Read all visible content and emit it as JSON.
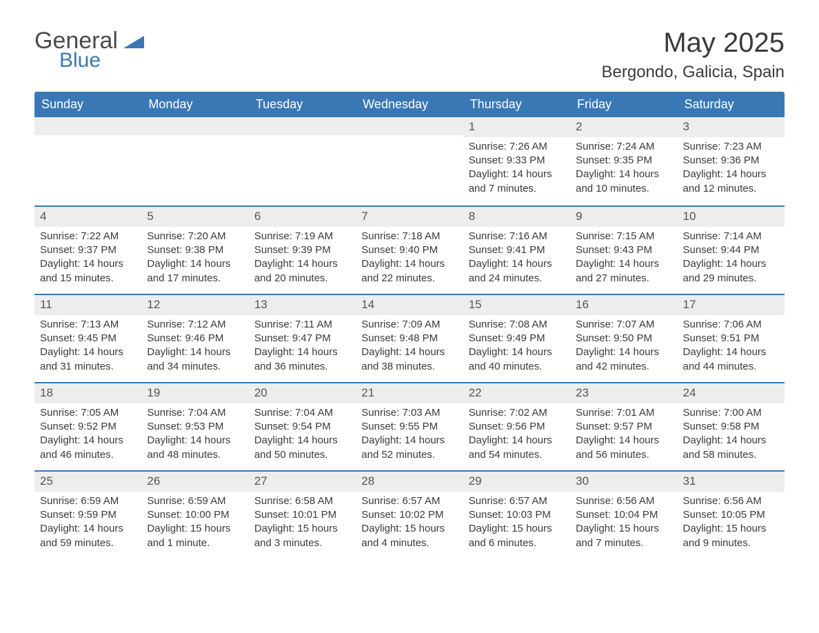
{
  "brand": {
    "part1": "General",
    "part2": "Blue",
    "logo_color": "#3a78b5"
  },
  "title": "May 2025",
  "location": "Bergondo, Galicia, Spain",
  "colors": {
    "header_bg": "#3a78b5",
    "header_text": "#ffffff",
    "daynum_bg": "#ededed",
    "text": "#3a3a3a",
    "row_border": "#3a78b5"
  },
  "day_labels": [
    "Sunday",
    "Monday",
    "Tuesday",
    "Wednesday",
    "Thursday",
    "Friday",
    "Saturday"
  ],
  "weeks": [
    [
      null,
      null,
      null,
      null,
      {
        "n": "1",
        "sr": "7:26 AM",
        "ss": "9:33 PM",
        "dl": "14 hours and 7 minutes."
      },
      {
        "n": "2",
        "sr": "7:24 AM",
        "ss": "9:35 PM",
        "dl": "14 hours and 10 minutes."
      },
      {
        "n": "3",
        "sr": "7:23 AM",
        "ss": "9:36 PM",
        "dl": "14 hours and 12 minutes."
      }
    ],
    [
      {
        "n": "4",
        "sr": "7:22 AM",
        "ss": "9:37 PM",
        "dl": "14 hours and 15 minutes."
      },
      {
        "n": "5",
        "sr": "7:20 AM",
        "ss": "9:38 PM",
        "dl": "14 hours and 17 minutes."
      },
      {
        "n": "6",
        "sr": "7:19 AM",
        "ss": "9:39 PM",
        "dl": "14 hours and 20 minutes."
      },
      {
        "n": "7",
        "sr": "7:18 AM",
        "ss": "9:40 PM",
        "dl": "14 hours and 22 minutes."
      },
      {
        "n": "8",
        "sr": "7:16 AM",
        "ss": "9:41 PM",
        "dl": "14 hours and 24 minutes."
      },
      {
        "n": "9",
        "sr": "7:15 AM",
        "ss": "9:43 PM",
        "dl": "14 hours and 27 minutes."
      },
      {
        "n": "10",
        "sr": "7:14 AM",
        "ss": "9:44 PM",
        "dl": "14 hours and 29 minutes."
      }
    ],
    [
      {
        "n": "11",
        "sr": "7:13 AM",
        "ss": "9:45 PM",
        "dl": "14 hours and 31 minutes."
      },
      {
        "n": "12",
        "sr": "7:12 AM",
        "ss": "9:46 PM",
        "dl": "14 hours and 34 minutes."
      },
      {
        "n": "13",
        "sr": "7:11 AM",
        "ss": "9:47 PM",
        "dl": "14 hours and 36 minutes."
      },
      {
        "n": "14",
        "sr": "7:09 AM",
        "ss": "9:48 PM",
        "dl": "14 hours and 38 minutes."
      },
      {
        "n": "15",
        "sr": "7:08 AM",
        "ss": "9:49 PM",
        "dl": "14 hours and 40 minutes."
      },
      {
        "n": "16",
        "sr": "7:07 AM",
        "ss": "9:50 PM",
        "dl": "14 hours and 42 minutes."
      },
      {
        "n": "17",
        "sr": "7:06 AM",
        "ss": "9:51 PM",
        "dl": "14 hours and 44 minutes."
      }
    ],
    [
      {
        "n": "18",
        "sr": "7:05 AM",
        "ss": "9:52 PM",
        "dl": "14 hours and 46 minutes."
      },
      {
        "n": "19",
        "sr": "7:04 AM",
        "ss": "9:53 PM",
        "dl": "14 hours and 48 minutes."
      },
      {
        "n": "20",
        "sr": "7:04 AM",
        "ss": "9:54 PM",
        "dl": "14 hours and 50 minutes."
      },
      {
        "n": "21",
        "sr": "7:03 AM",
        "ss": "9:55 PM",
        "dl": "14 hours and 52 minutes."
      },
      {
        "n": "22",
        "sr": "7:02 AM",
        "ss": "9:56 PM",
        "dl": "14 hours and 54 minutes."
      },
      {
        "n": "23",
        "sr": "7:01 AM",
        "ss": "9:57 PM",
        "dl": "14 hours and 56 minutes."
      },
      {
        "n": "24",
        "sr": "7:00 AM",
        "ss": "9:58 PM",
        "dl": "14 hours and 58 minutes."
      }
    ],
    [
      {
        "n": "25",
        "sr": "6:59 AM",
        "ss": "9:59 PM",
        "dl": "14 hours and 59 minutes."
      },
      {
        "n": "26",
        "sr": "6:59 AM",
        "ss": "10:00 PM",
        "dl": "15 hours and 1 minute."
      },
      {
        "n": "27",
        "sr": "6:58 AM",
        "ss": "10:01 PM",
        "dl": "15 hours and 3 minutes."
      },
      {
        "n": "28",
        "sr": "6:57 AM",
        "ss": "10:02 PM",
        "dl": "15 hours and 4 minutes."
      },
      {
        "n": "29",
        "sr": "6:57 AM",
        "ss": "10:03 PM",
        "dl": "15 hours and 6 minutes."
      },
      {
        "n": "30",
        "sr": "6:56 AM",
        "ss": "10:04 PM",
        "dl": "15 hours and 7 minutes."
      },
      {
        "n": "31",
        "sr": "6:56 AM",
        "ss": "10:05 PM",
        "dl": "15 hours and 9 minutes."
      }
    ]
  ],
  "labels": {
    "sunrise": "Sunrise: ",
    "sunset": "Sunset: ",
    "daylight": "Daylight: "
  }
}
